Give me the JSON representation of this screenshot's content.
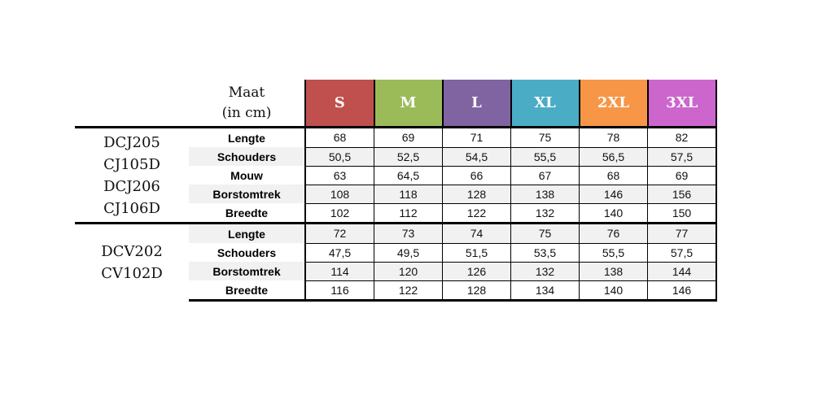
{
  "header": {
    "maat_line1": "Maat",
    "maat_line2": "(in cm)"
  },
  "sizes": [
    {
      "label": "S",
      "color": "#c0504d"
    },
    {
      "label": "M",
      "color": "#9bbb59"
    },
    {
      "label": "L",
      "color": "#8064a2"
    },
    {
      "label": "XL",
      "color": "#4bacc6"
    },
    {
      "label": "2XL",
      "color": "#f79646"
    },
    {
      "label": "3XL",
      "color": "#cc66cc"
    }
  ],
  "groups": [
    {
      "codes": [
        "DCJ205",
        "CJ105D",
        "DCJ206",
        "CJ106D"
      ],
      "rows": [
        {
          "label": "Lengte",
          "values": [
            "68",
            "69",
            "71",
            "75",
            "78",
            "82"
          ]
        },
        {
          "label": "Schouders",
          "values": [
            "50,5",
            "52,5",
            "54,5",
            "55,5",
            "56,5",
            "57,5"
          ]
        },
        {
          "label": "Mouw",
          "values": [
            "63",
            "64,5",
            "66",
            "67",
            "68",
            "69"
          ]
        },
        {
          "label": "Borstomtrek",
          "values": [
            "108",
            "118",
            "128",
            "138",
            "146",
            "156"
          ]
        },
        {
          "label": "Breedte",
          "values": [
            "102",
            "112",
            "122",
            "132",
            "140",
            "150"
          ]
        }
      ]
    },
    {
      "codes": [
        "DCV202",
        "CV102D"
      ],
      "rows": [
        {
          "label": "Lengte",
          "values": [
            "72",
            "73",
            "74",
            "75",
            "76",
            "77"
          ]
        },
        {
          "label": "Schouders",
          "values": [
            "47,5",
            "49,5",
            "51,5",
            "53,5",
            "55,5",
            "57,5"
          ]
        },
        {
          "label": "Borstomtrek",
          "values": [
            "114",
            "120",
            "126",
            "132",
            "138",
            "144"
          ]
        },
        {
          "label": "Breedte",
          "values": [
            "116",
            "122",
            "128",
            "134",
            "140",
            "146"
          ]
        }
      ]
    }
  ]
}
